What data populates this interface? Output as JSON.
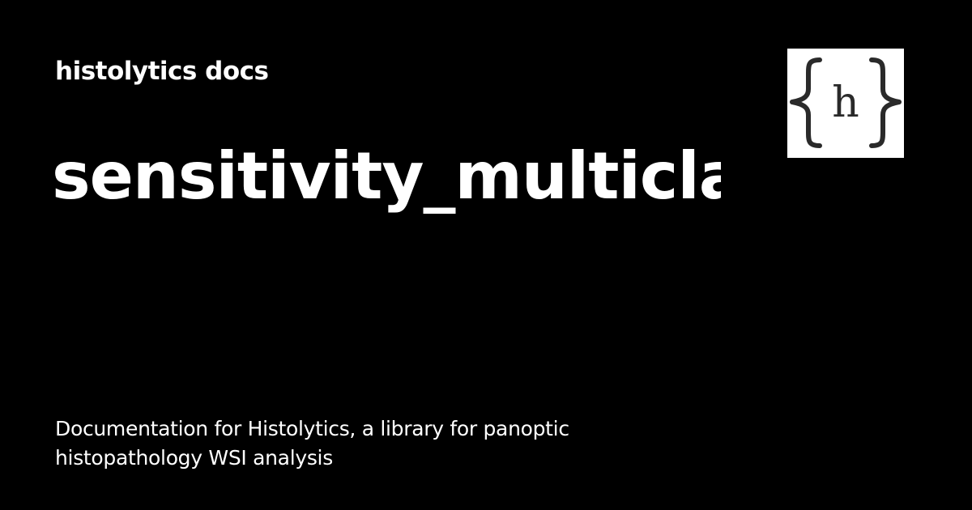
{
  "site": {
    "name": "histolytics docs"
  },
  "page": {
    "title": "sensitivity_multiclass",
    "description": "Documentation for Histolytics, a library for panoptic histopathology WSI analysis"
  },
  "logo": {
    "icon": "braces-h-logo",
    "letter": "h",
    "background": "#ffffff",
    "foreground": "#2a2a2a"
  },
  "colors": {
    "background": "#000000",
    "text": "#ffffff"
  }
}
